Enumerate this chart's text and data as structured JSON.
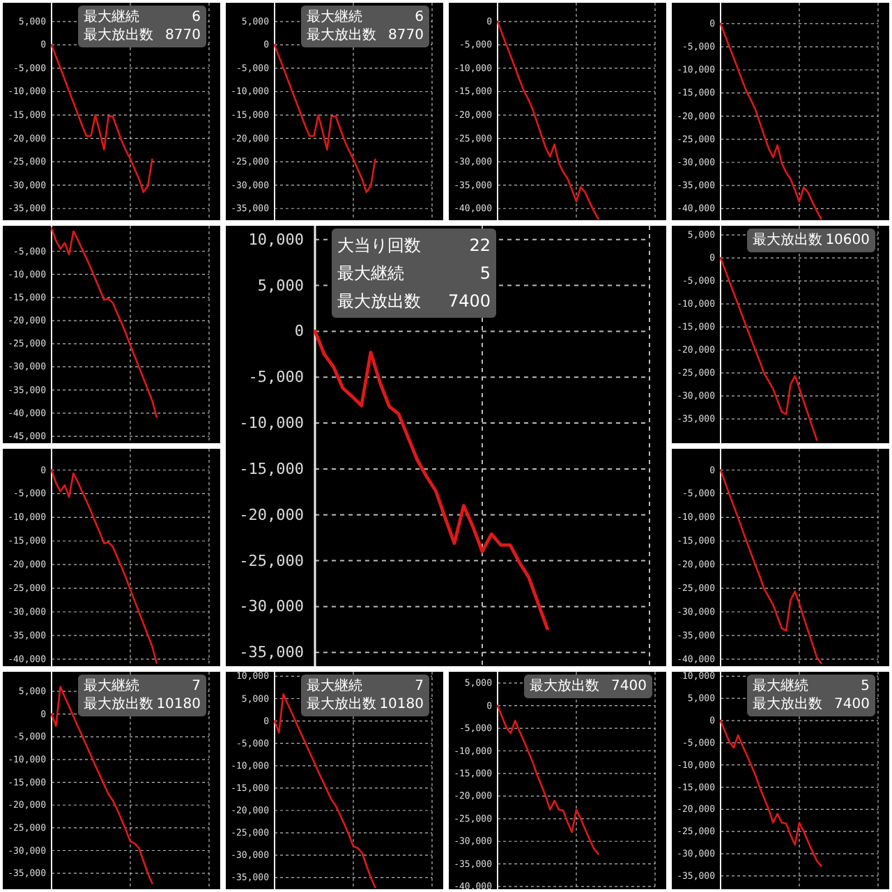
{
  "chart_data": [
    {
      "type": "line",
      "color": "#e01818",
      "grid": true,
      "tick_labels": "y",
      "ylim": [
        -37500,
        9000
      ],
      "yticks": [
        {
          "value": 5000,
          "label": "5,000"
        },
        {
          "value": 0,
          "label": "0"
        },
        {
          "value": -5000,
          "label": "-5,000"
        },
        {
          "value": -10000,
          "label": "-10,000"
        },
        {
          "value": -15000,
          "label": "-15,000"
        },
        {
          "value": -20000,
          "label": "-20,000"
        },
        {
          "value": -25000,
          "label": "-25,000"
        },
        {
          "value": -30000,
          "label": "-30,000"
        },
        {
          "value": -35000,
          "label": "-35,000"
        }
      ],
      "annotations": [
        "最大継続",
        "6",
        "最大放出数",
        "8770"
      ],
      "categories": [
        null,
        null,
        null,
        null,
        null,
        null,
        null,
        null,
        null,
        null,
        null,
        null,
        null,
        null,
        null,
        null,
        null,
        null,
        null,
        null,
        null,
        null,
        null,
        null,
        null,
        null,
        null,
        null,
        null,
        null,
        null,
        null,
        null,
        null,
        null,
        null
      ],
      "values": [
        0,
        -2500,
        -4900,
        -7400,
        -9900,
        -12300,
        -14800,
        -17300,
        -19500,
        -19500,
        -15000,
        -18600,
        -22400,
        -15300,
        -15300,
        -17900,
        -20500,
        -22600,
        -24400,
        -26600,
        -28700,
        -31500,
        -30200,
        -24500,
        null,
        null,
        null,
        null,
        null,
        null,
        null,
        null,
        null,
        null,
        null,
        null
      ]
    },
    {
      "type": "line",
      "color": "#e01818",
      "grid": true,
      "tick_labels": "y",
      "ylim": [
        -37500,
        9000
      ],
      "yticks": [
        {
          "value": 5000,
          "label": "5,000"
        },
        {
          "value": 0,
          "label": "0"
        },
        {
          "value": -5000,
          "label": "-5,000"
        },
        {
          "value": -10000,
          "label": "-10,000"
        },
        {
          "value": -15000,
          "label": "-15,000"
        },
        {
          "value": -20000,
          "label": "-20,000"
        },
        {
          "value": -25000,
          "label": "-25,000"
        },
        {
          "value": -30000,
          "label": "-30,000"
        },
        {
          "value": -35000,
          "label": "-35,000"
        }
      ],
      "annotations": [
        "最大継続",
        "6",
        "最大放出数",
        "8770"
      ],
      "categories": [
        null,
        null,
        null,
        null,
        null,
        null,
        null,
        null,
        null,
        null,
        null,
        null,
        null,
        null,
        null,
        null,
        null,
        null,
        null,
        null,
        null,
        null,
        null,
        null,
        null,
        null,
        null,
        null,
        null,
        null,
        null,
        null,
        null,
        null,
        null,
        null
      ],
      "values": [
        0,
        -2500,
        -4900,
        -7400,
        -9900,
        -12300,
        -14800,
        -17300,
        -19500,
        -19500,
        -15000,
        -18600,
        -22400,
        -15300,
        -15300,
        -17900,
        -20500,
        -22600,
        -24400,
        -26600,
        -28700,
        -31500,
        -30200,
        -24500,
        null,
        null,
        null,
        null,
        null,
        null,
        null,
        null,
        null,
        null,
        null,
        null
      ]
    },
    {
      "type": "line",
      "color": "#e01818",
      "grid": true,
      "tick_labels": "y",
      "ylim": [
        -42500,
        4000
      ],
      "yticks": [
        {
          "value": 0,
          "label": "0"
        },
        {
          "value": -5000,
          "label": "-5,000"
        },
        {
          "value": -10000,
          "label": "-10,000"
        },
        {
          "value": -15000,
          "label": "-15,000"
        },
        {
          "value": -20000,
          "label": "-20,000"
        },
        {
          "value": -25000,
          "label": "-25,000"
        },
        {
          "value": -30000,
          "label": "-30,000"
        },
        {
          "value": -35000,
          "label": "-35,000"
        },
        {
          "value": -40000,
          "label": "-40,000"
        }
      ],
      "categories": [
        null,
        null,
        null,
        null,
        null,
        null,
        null,
        null,
        null,
        null,
        null,
        null,
        null,
        null,
        null,
        null,
        null,
        null,
        null,
        null,
        null,
        null,
        null,
        null,
        null,
        null,
        null,
        null,
        null,
        null,
        null,
        null,
        null,
        null,
        null,
        null
      ],
      "values": [
        0,
        -2500,
        -5000,
        -7400,
        -9900,
        -12400,
        -14800,
        -16600,
        -18700,
        -21500,
        -24300,
        -27000,
        -28900,
        -26300,
        -30200,
        -32200,
        -33600,
        -36000,
        -38500,
        -35400,
        -36500,
        -38600,
        -40500,
        -42200,
        null,
        null,
        null,
        null,
        null,
        null,
        null,
        null,
        null,
        null,
        null,
        null
      ]
    },
    {
      "type": "line",
      "color": "#e01818",
      "grid": true,
      "tick_labels": "y",
      "ylim": [
        -42500,
        4500
      ],
      "yticks": [
        {
          "value": 0,
          "label": "0"
        },
        {
          "value": -5000,
          "label": "-5,000"
        },
        {
          "value": -10000,
          "label": "-10,000"
        },
        {
          "value": -15000,
          "label": "-15,000"
        },
        {
          "value": -20000,
          "label": "-20,000"
        },
        {
          "value": -25000,
          "label": "-25,000"
        },
        {
          "value": -30000,
          "label": "-30,000"
        },
        {
          "value": -35000,
          "label": "-35,000"
        },
        {
          "value": -40000,
          "label": "-40,000"
        }
      ],
      "categories": [
        null,
        null,
        null,
        null,
        null,
        null,
        null,
        null,
        null,
        null,
        null,
        null,
        null,
        null,
        null,
        null,
        null,
        null,
        null,
        null,
        null,
        null,
        null,
        null,
        null,
        null,
        null,
        null,
        null,
        null,
        null,
        null,
        null,
        null,
        null,
        null
      ],
      "values": [
        0,
        -2500,
        -5000,
        -7400,
        -9900,
        -12400,
        -14800,
        -16600,
        -18700,
        -21500,
        -24300,
        -27000,
        -28900,
        -26300,
        -30200,
        -32200,
        -33600,
        -36000,
        -38500,
        -35400,
        -36500,
        -38600,
        -40500,
        -42200,
        null,
        null,
        null,
        null,
        null,
        null,
        null,
        null,
        null,
        null,
        null,
        null
      ]
    },
    {
      "type": "line",
      "color": "#e01818",
      "grid": true,
      "tick_labels": "y",
      "ylim": [
        -46500,
        500
      ],
      "yticks": [
        {
          "value": -5000,
          "label": "-5,000"
        },
        {
          "value": -10000,
          "label": "-10,000"
        },
        {
          "value": -15000,
          "label": "-15,000"
        },
        {
          "value": -20000,
          "label": "-20,000"
        },
        {
          "value": -25000,
          "label": "-25,000"
        },
        {
          "value": -30000,
          "label": "-30,000"
        },
        {
          "value": -35000,
          "label": "-35,000"
        },
        {
          "value": -40000,
          "label": "-40,000"
        },
        {
          "value": -45000,
          "label": "-45,000"
        }
      ],
      "categories": [
        null,
        null,
        null,
        null,
        null,
        null,
        null,
        null,
        null,
        null,
        null,
        null,
        null,
        null,
        null,
        null,
        null,
        null,
        null,
        null,
        null,
        null,
        null,
        null,
        null,
        null,
        null,
        null,
        null,
        null,
        null,
        null,
        null,
        null,
        null,
        null
      ],
      "values": [
        0,
        -2700,
        -4500,
        -3200,
        -5700,
        -700,
        -2500,
        -4600,
        -6600,
        -8700,
        -11000,
        -13200,
        -15500,
        -15300,
        -16200,
        -18400,
        -20500,
        -22800,
        -25300,
        -27700,
        -30100,
        -32500,
        -34900,
        -37300,
        -40800,
        null,
        null,
        null,
        null,
        null,
        null,
        null,
        null,
        null,
        null,
        null
      ]
    },
    {
      "type": "line",
      "color": "#e01818",
      "grid": true,
      "tick_labels": "y",
      "ylim": [
        -36500,
        11500
      ],
      "yticks": [
        {
          "value": 10000,
          "label": "10,000"
        },
        {
          "value": 5000,
          "label": "5,000"
        },
        {
          "value": 0,
          "label": "0"
        },
        {
          "value": -5000,
          "label": "-5,000"
        },
        {
          "value": -10000,
          "label": "-10,000"
        },
        {
          "value": -15000,
          "label": "-15,000"
        },
        {
          "value": -20000,
          "label": "-20,000"
        },
        {
          "value": -25000,
          "label": "-25,000"
        },
        {
          "value": -30000,
          "label": "-30,000"
        },
        {
          "value": -35000,
          "label": "-35,000"
        }
      ],
      "annotations": [
        "大当り回数",
        "22",
        "最大継続",
        "5",
        "最大放出数",
        "7400"
      ],
      "categories": [
        null,
        null,
        null,
        null,
        null,
        null,
        null,
        null,
        null,
        null,
        null,
        null,
        null,
        null,
        null,
        null,
        null,
        null,
        null,
        null,
        null,
        null,
        null,
        null,
        null,
        null,
        null,
        null,
        null,
        null,
        null,
        null,
        null,
        null,
        null,
        null
      ],
      "values": [
        0,
        -2500,
        -3900,
        -6200,
        -7100,
        -8100,
        -2300,
        -5600,
        -8200,
        -9000,
        -11500,
        -14000,
        -15800,
        -17400,
        -20300,
        -23100,
        -19000,
        -21300,
        -24000,
        -22100,
        -23300,
        -23300,
        -25200,
        -26800,
        -29600,
        -32400,
        null,
        null,
        null,
        null,
        null,
        null,
        null,
        null,
        null,
        null
      ]
    },
    {
      "type": "line",
      "color": "#e01818",
      "grid": true,
      "tick_labels": "y",
      "ylim": [
        -40300,
        7000
      ],
      "yticks": [
        {
          "value": 5000,
          "label": "5,000"
        },
        {
          "value": 0,
          "label": "0"
        },
        {
          "value": -5000,
          "label": "-5,000"
        },
        {
          "value": -10000,
          "label": "-10,000"
        },
        {
          "value": -15000,
          "label": "-15,000"
        },
        {
          "value": -20000,
          "label": "-20,000"
        },
        {
          "value": -25000,
          "label": "-25,000"
        },
        {
          "value": -30000,
          "label": "-30,000"
        },
        {
          "value": -35000,
          "label": "-35,000"
        }
      ],
      "annotations": [
        "最大放出数",
        "10600"
      ],
      "categories": [
        null,
        null,
        null,
        null,
        null,
        null,
        null,
        null,
        null,
        null,
        null,
        null,
        null,
        null,
        null,
        null,
        null,
        null,
        null,
        null,
        null,
        null,
        null,
        null,
        null,
        null,
        null,
        null,
        null,
        null,
        null,
        null,
        null,
        null,
        null,
        null
      ],
      "values": [
        0,
        -2500,
        -5100,
        -7600,
        -10100,
        -12700,
        -15200,
        -17700,
        -20200,
        -22600,
        -25200,
        -26800,
        -28500,
        -31000,
        -33500,
        -34000,
        -27500,
        -25700,
        -28300,
        -31200,
        -34000,
        -36800,
        -39600,
        null,
        null,
        null,
        null,
        null,
        null,
        null,
        null,
        null,
        null,
        null,
        null,
        null
      ]
    },
    {
      "type": "line",
      "color": "#e01818",
      "grid": true,
      "tick_labels": "y",
      "ylim": [
        -41500,
        4500
      ],
      "yticks": [
        {
          "value": 0,
          "label": "0"
        },
        {
          "value": -5000,
          "label": "-5,000"
        },
        {
          "value": -10000,
          "label": "-10,000"
        },
        {
          "value": -15000,
          "label": "-15,000"
        },
        {
          "value": -20000,
          "label": "-20,000"
        },
        {
          "value": -25000,
          "label": "-25,000"
        },
        {
          "value": -30000,
          "label": "-30,000"
        },
        {
          "value": -35000,
          "label": "-35,000"
        },
        {
          "value": -40000,
          "label": "-40,000"
        }
      ],
      "categories": [
        null,
        null,
        null,
        null,
        null,
        null,
        null,
        null,
        null,
        null,
        null,
        null,
        null,
        null,
        null,
        null,
        null,
        null,
        null,
        null,
        null,
        null,
        null,
        null,
        null,
        null,
        null,
        null,
        null,
        null,
        null,
        null,
        null,
        null,
        null,
        null
      ],
      "values": [
        0,
        -2700,
        -4500,
        -3200,
        -5700,
        -700,
        -2500,
        -4600,
        -6600,
        -8700,
        -11000,
        -13200,
        -15500,
        -15300,
        -16200,
        -18400,
        -20500,
        -22800,
        -25300,
        -27700,
        -30100,
        -32500,
        -34900,
        -37300,
        -40800,
        null,
        null,
        null,
        null,
        null,
        null,
        null,
        null,
        null,
        null,
        null
      ]
    },
    {
      "type": "line",
      "color": "#e01818",
      "grid": true,
      "tick_labels": "y",
      "ylim": [
        -41500,
        4500
      ],
      "yticks": [
        {
          "value": 0,
          "label": "0"
        },
        {
          "value": -5000,
          "label": "-5,000"
        },
        {
          "value": -10000,
          "label": "-10,000"
        },
        {
          "value": -15000,
          "label": "-15,000"
        },
        {
          "value": -20000,
          "label": "-20,000"
        },
        {
          "value": -25000,
          "label": "-25,000"
        },
        {
          "value": -30000,
          "label": "-30,000"
        },
        {
          "value": -35000,
          "label": "-35,000"
        },
        {
          "value": -40000,
          "label": "-40,000"
        }
      ],
      "categories": [
        null,
        null,
        null,
        null,
        null,
        null,
        null,
        null,
        null,
        null,
        null,
        null,
        null,
        null,
        null,
        null,
        null,
        null,
        null,
        null,
        null,
        null,
        null,
        null,
        null,
        null,
        null,
        null,
        null,
        null,
        null,
        null,
        null,
        null,
        null,
        null
      ],
      "values": [
        0,
        -2500,
        -5100,
        -7600,
        -10100,
        -12700,
        -15200,
        -17700,
        -20200,
        -22600,
        -25200,
        -26800,
        -28500,
        -31000,
        -33500,
        -34000,
        -27500,
        -25700,
        -28300,
        -31200,
        -34000,
        -36800,
        -39600,
        -40900,
        null,
        null,
        null,
        null,
        null,
        null,
        null,
        null,
        null,
        null,
        null,
        null
      ]
    },
    {
      "type": "line",
      "color": "#e01818",
      "grid": true,
      "tick_labels": "y",
      "ylim": [
        -38500,
        9300
      ],
      "yticks": [
        {
          "value": 5000,
          "label": "5,000"
        },
        {
          "value": 0,
          "label": "0"
        },
        {
          "value": -5000,
          "label": "-5,000"
        },
        {
          "value": -10000,
          "label": "-10,000"
        },
        {
          "value": -15000,
          "label": "-15,000"
        },
        {
          "value": -20000,
          "label": "-20,000"
        },
        {
          "value": -25000,
          "label": "-25,000"
        },
        {
          "value": -30000,
          "label": "-30,000"
        },
        {
          "value": -35000,
          "label": "-35,000"
        }
      ],
      "annotations": [
        "最大継続",
        "7",
        "最大放出数",
        "10180"
      ],
      "categories": [
        null,
        null,
        null,
        null,
        null,
        null,
        null,
        null,
        null,
        null,
        null,
        null,
        null,
        null,
        null,
        null,
        null,
        null,
        null,
        null,
        null,
        null,
        null,
        null,
        null,
        null,
        null,
        null,
        null,
        null,
        null,
        null,
        null,
        null,
        null,
        null
      ],
      "values": [
        0,
        -2600,
        6000,
        3800,
        1700,
        -500,
        -2700,
        -4800,
        -7000,
        -9100,
        -11300,
        -13400,
        -15500,
        -17600,
        -19000,
        -21000,
        -23200,
        -25500,
        -28000,
        -28400,
        -29500,
        -32300,
        -35000,
        -37200,
        null,
        null,
        null,
        null,
        null,
        null,
        null,
        null,
        null,
        null,
        null,
        null
      ]
    },
    {
      "type": "line",
      "color": "#e01818",
      "grid": true,
      "tick_labels": "y",
      "ylim": [
        -37600,
        11000
      ],
      "yticks": [
        {
          "value": 10000,
          "label": "10,000"
        },
        {
          "value": 5000,
          "label": "5,000"
        },
        {
          "value": 0,
          "label": "0"
        },
        {
          "value": -5000,
          "label": "-5,000"
        },
        {
          "value": -10000,
          "label": "-10,000"
        },
        {
          "value": -15000,
          "label": "-15,000"
        },
        {
          "value": -20000,
          "label": "-20,000"
        },
        {
          "value": -25000,
          "label": "-25,000"
        },
        {
          "value": -30000,
          "label": "-30,000"
        },
        {
          "value": -35000,
          "label": "-35,000"
        }
      ],
      "annotations": [
        "最大継続",
        "7",
        "最大放出数",
        "10180"
      ],
      "categories": [
        null,
        null,
        null,
        null,
        null,
        null,
        null,
        null,
        null,
        null,
        null,
        null,
        null,
        null,
        null,
        null,
        null,
        null,
        null,
        null,
        null,
        null,
        null,
        null,
        null,
        null,
        null,
        null,
        null,
        null,
        null,
        null,
        null,
        null,
        null,
        null
      ],
      "values": [
        0,
        -2600,
        6000,
        3800,
        1700,
        -500,
        -2700,
        -4800,
        -7000,
        -9100,
        -11300,
        -13400,
        -15500,
        -17600,
        -19000,
        -21000,
        -23200,
        -25500,
        -28000,
        -28400,
        -29500,
        -32300,
        -35000,
        -37200,
        null,
        null,
        null,
        null,
        null,
        null,
        null,
        null,
        null,
        null,
        null,
        null
      ]
    },
    {
      "type": "line",
      "color": "#e01818",
      "grid": true,
      "tick_labels": "y",
      "ylim": [
        -40600,
        7500
      ],
      "yticks": [
        {
          "value": 5000,
          "label": "5,000"
        },
        {
          "value": 0,
          "label": "0"
        },
        {
          "value": -5000,
          "label": "-5,000"
        },
        {
          "value": -10000,
          "label": "-10,000"
        },
        {
          "value": -15000,
          "label": "-15,000"
        },
        {
          "value": -20000,
          "label": "-20,000"
        },
        {
          "value": -25000,
          "label": "-25,000"
        },
        {
          "value": -30000,
          "label": "-30,000"
        },
        {
          "value": -35000,
          "label": "-35,000"
        },
        {
          "value": -40000,
          "label": "-40,000"
        }
      ],
      "annotations": [
        "最大放出数",
        "7400"
      ],
      "categories": [
        null,
        null,
        null,
        null,
        null,
        null,
        null,
        null,
        null,
        null,
        null,
        null,
        null,
        null,
        null,
        null,
        null,
        null,
        null,
        null,
        null,
        null,
        null,
        null,
        null,
        null,
        null,
        null,
        null,
        null,
        null,
        null,
        null,
        null,
        null,
        null
      ],
      "values": [
        0,
        -2400,
        -4800,
        -6100,
        -3300,
        -5600,
        -7800,
        -10100,
        -12400,
        -15200,
        -17600,
        -20000,
        -23000,
        -21000,
        -23000,
        -23200,
        -25800,
        -28000,
        -23000,
        -25000,
        -27300,
        -29500,
        -31600,
        -32800,
        null,
        null,
        null,
        null,
        null,
        null,
        null,
        null,
        null,
        null,
        null,
        null
      ]
    },
    {
      "type": "line",
      "color": "#e01818",
      "grid": true,
      "tick_labels": "y",
      "ylim": [
        -38000,
        11000
      ],
      "yticks": [
        {
          "value": 10000,
          "label": "10,000"
        },
        {
          "value": 5000,
          "label": "5,000"
        },
        {
          "value": 0,
          "label": "0"
        },
        {
          "value": -5000,
          "label": "-5,000"
        },
        {
          "value": -10000,
          "label": "-10,000"
        },
        {
          "value": -15000,
          "label": "-15,000"
        },
        {
          "value": -20000,
          "label": "-20,000"
        },
        {
          "value": -25000,
          "label": "-25,000"
        },
        {
          "value": -30000,
          "label": "-30,000"
        },
        {
          "value": -35000,
          "label": "-35,000"
        }
      ],
      "annotations": [
        "最大継続",
        "5",
        "最大放出数",
        "7400"
      ],
      "categories": [
        null,
        null,
        null,
        null,
        null,
        null,
        null,
        null,
        null,
        null,
        null,
        null,
        null,
        null,
        null,
        null,
        null,
        null,
        null,
        null,
        null,
        null,
        null,
        null,
        null,
        null,
        null,
        null,
        null,
        null,
        null,
        null,
        null,
        null,
        null,
        null
      ],
      "values": [
        0,
        -2400,
        -4800,
        -6100,
        -3300,
        -5600,
        -7800,
        -10100,
        -12400,
        -15200,
        -17600,
        -20000,
        -23000,
        -21000,
        -23000,
        -23200,
        -25800,
        -28000,
        -23000,
        -25000,
        -27300,
        -29500,
        -31600,
        -32800,
        null,
        null,
        null,
        null,
        null,
        null,
        null,
        null,
        null,
        null,
        null,
        null
      ]
    }
  ]
}
